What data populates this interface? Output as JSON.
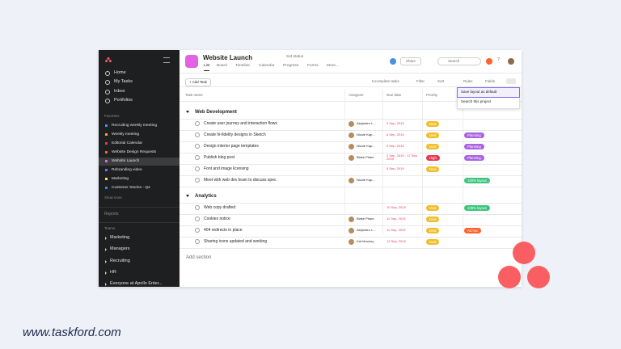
{
  "footer": {
    "url": "www.taskford.com"
  },
  "sidebar": {
    "brand": "asana",
    "nav": [
      "Home",
      "My Tasks",
      "Inbox",
      "Portfolios"
    ],
    "favorites_title": "Favorites",
    "favorites": [
      {
        "label": "Recruiting weekly meeting",
        "color": "#4a90e2"
      },
      {
        "label": "Weekly meeting",
        "color": "#f5a623"
      },
      {
        "label": "Editorial Calendar",
        "color": "#e8384f"
      },
      {
        "label": "Website Design Requests",
        "color": "#fd612c"
      },
      {
        "label": "Website Launch",
        "color": "#e362e3"
      },
      {
        "label": "Rebranding video",
        "color": "#7a6ff0"
      },
      {
        "label": "Marketing",
        "color": "#f8df72"
      },
      {
        "label": "Customer Stories - Q4",
        "color": "#4186e0"
      }
    ],
    "show_more": "Show more",
    "reports": "Reports",
    "teams_title": "Teams",
    "teams": [
      "Marketing",
      "Managers",
      "Recruiting",
      "HR",
      "Everyone at Apollo Enter..."
    ]
  },
  "header": {
    "title": "Website Launch",
    "set_status": "Set status",
    "tabs": [
      "List",
      "Board",
      "Timeline",
      "Calendar",
      "Progress",
      "Forms",
      "More..."
    ],
    "share": "Share",
    "search": "Search",
    "help": "?"
  },
  "toolbar": {
    "add_task": "+ Add Task",
    "incomplete": "Incomplete tasks",
    "filter": "Filter",
    "sort": "Sort",
    "rules": "Rules",
    "fields": "Fields"
  },
  "menu": [
    "Save layout as default",
    "Search this project"
  ],
  "columns": [
    "Task name",
    "Assignee",
    "Due date",
    "Priority"
  ],
  "sections": [
    {
      "name": "Web Development",
      "tasks": [
        {
          "name": "Create user journey and interaction flows",
          "assignee": "Alejandro L...",
          "due": "3 Sep, 2019",
          "priority": "Med"
        },
        {
          "name": "Create hi-fidelity designs in Sketch",
          "assignee": "Nicole Kap...",
          "due": "6 Sep, 2019",
          "priority": "Med",
          "tag": "Planning"
        },
        {
          "name": "Design interior page templates",
          "assignee": "Nicole Kap...",
          "due": "9 Sep, 2019",
          "priority": "Med",
          "tag": "Planning"
        },
        {
          "name": "Publish blog post",
          "assignee": "Blake Pham",
          "due": "2 Sep, 2019 - 17 Sep 2019",
          "priority": "High",
          "tag": "Planning"
        },
        {
          "name": "Font and image licensing",
          "due": "6 Sep, 2019",
          "priority": "Med"
        },
        {
          "name": "Meet with web dev team to discuss spec",
          "assignee": "Nicole Kap...",
          "tag": "100% layout"
        }
      ]
    },
    {
      "name": "Analytics",
      "tasks": [
        {
          "name": "Web copy drafted",
          "due": "10 Sep, 2019",
          "priority": "Med",
          "tag": "100% layout"
        },
        {
          "name": "Cookies notice",
          "assignee": "Blake Pham",
          "due": "11 Sep, 2019",
          "priority": "Med"
        },
        {
          "name": "404 redirects in place",
          "assignee": "Alejandro L...",
          "due": "11 Sep, 2019",
          "priority": "Med",
          "tag": "Ad hoc"
        },
        {
          "name": "Sharing icons updated and working",
          "assignee": "Kat Mooney",
          "due": "12 Sep, 2019",
          "priority": "Med"
        }
      ]
    }
  ],
  "add_section": "Add section"
}
